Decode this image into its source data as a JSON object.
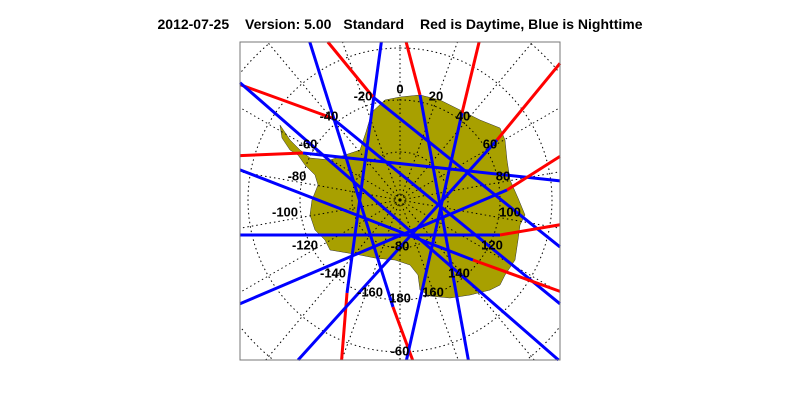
{
  "title": {
    "date": "2012-07-25",
    "version": "Version: 5.00",
    "product": "Standard",
    "legend": "Red is Daytime, Blue is Nighttime"
  },
  "map": {
    "projection": "south polar stereographic",
    "region": "Antarctica",
    "longitude_labels": [
      "0",
      "20",
      "40",
      "60",
      "80",
      "100",
      "120",
      "140",
      "160",
      "180",
      "-160",
      "-140",
      "-120",
      "-100",
      "-80",
      "-60",
      "-40",
      "-20"
    ],
    "latitude_labels": [
      "-80",
      "-60"
    ],
    "colors": {
      "land": "#a8a000",
      "day_track": "#ff0000",
      "night_track": "#0000ff",
      "grid": "#000000"
    }
  }
}
